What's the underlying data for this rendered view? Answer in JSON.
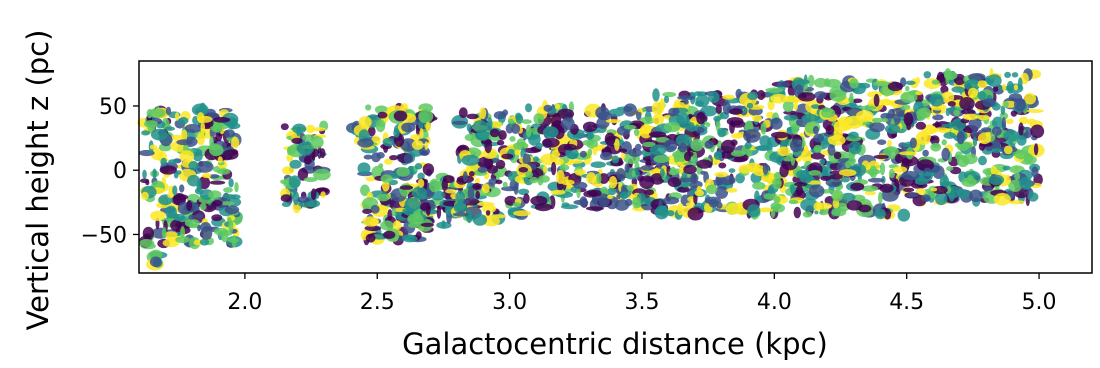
{
  "chart_data": {
    "type": "scatter",
    "title": "",
    "xlabel": "Galactocentric distance (kpc)",
    "ylabel": "Vertical height z (pc)",
    "xlim": [
      1.6,
      5.2
    ],
    "ylim": [
      -80,
      85
    ],
    "x_ticks": [
      2.0,
      2.5,
      3.0,
      3.5,
      4.0,
      4.5,
      5.0
    ],
    "x_tick_labels": [
      "2.0",
      "2.5",
      "3.0",
      "3.5",
      "4.0",
      "4.5",
      "5.0"
    ],
    "y_ticks": [
      50,
      0,
      -50
    ],
    "y_tick_labels": [
      "50",
      "0",
      "−50"
    ],
    "grid": false,
    "legend": "none",
    "colormap": "viridis",
    "colormap_stops": [
      "#440154",
      "#3b528b",
      "#21918c",
      "#5ec962",
      "#fde725"
    ],
    "clusters": [
      {
        "x": [
          1.62,
          1.97
        ],
        "z": [
          -60,
          48
        ]
      },
      {
        "x": [
          1.65,
          1.68
        ],
        "z": [
          -75,
          -65
        ]
      },
      {
        "x": [
          2.15,
          2.3
        ],
        "z": [
          -30,
          35
        ]
      },
      {
        "x": [
          2.4,
          2.45
        ],
        "z": [
          20,
          35
        ]
      },
      {
        "x": [
          2.45,
          2.7
        ],
        "z": [
          -55,
          50
        ]
      },
      {
        "x": [
          2.6,
          2.8
        ],
        "z": [
          -45,
          -5
        ]
      },
      {
        "x": [
          2.8,
          3.05
        ],
        "z": [
          -40,
          45
        ]
      },
      {
        "x": [
          3.05,
          3.55
        ],
        "z": [
          -30,
          50
        ]
      },
      {
        "x": [
          3.55,
          4.0
        ],
        "z": [
          -35,
          60
        ]
      },
      {
        "x": [
          4.0,
          4.5
        ],
        "z": [
          -35,
          70
        ]
      },
      {
        "x": [
          4.5,
          5.0
        ],
        "z": [
          -25,
          75
        ]
      }
    ]
  }
}
